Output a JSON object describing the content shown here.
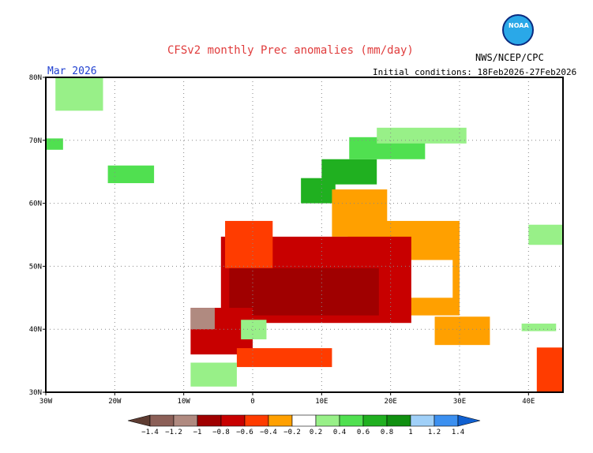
{
  "header": {
    "title": "CFSv2 monthly Prec anomalies (mm/day)",
    "org": "NWS/NCEP/CPC",
    "month": "Mar 2026",
    "initial_conditions": "Initial conditions: 18Feb2026-27Feb2026",
    "logo_text": "NOAA"
  },
  "chart_data": {
    "type": "heatmap",
    "lon_range": [
      -30,
      45
    ],
    "lat_range": [
      30,
      80
    ],
    "x_ticks": [
      "30W",
      "20W",
      "10W",
      "0",
      "10E",
      "20E",
      "30E",
      "40E"
    ],
    "y_ticks": [
      "30N",
      "40N",
      "50N",
      "60N",
      "70N",
      "80N"
    ],
    "grid": "dotted every 10 degrees",
    "legend": {
      "placement": "bottom",
      "labels": [
        "-1.4",
        "-1.2",
        "-1",
        "-0.8",
        "-0.6",
        "-0.4",
        "-0.2",
        "0.2",
        "0.4",
        "0.6",
        "0.8",
        "1",
        "1.2",
        "1.4"
      ],
      "colors": [
        "#5e3c32",
        "#8c6058",
        "#b08a80",
        "#a00000",
        "#c80000",
        "#ff3c00",
        "#ffa000",
        "#ffffff",
        "#98f088",
        "#50e050",
        "#20b020",
        "#109010",
        "#a0d0f8",
        "#3c90f0",
        "#1060d0"
      ]
    },
    "cells": [
      {
        "lon": [
          -28.6,
          -21.7
        ],
        "lat": [
          74.7,
          80
        ],
        "v": 0.3
      },
      {
        "lon": [
          -30,
          -27.5
        ],
        "lat": [
          68.5,
          70.3
        ],
        "v": 0.5
      },
      {
        "lon": [
          -21,
          -14.3
        ],
        "lat": [
          63.2,
          66
        ],
        "v": 0.4
      },
      {
        "lon": [
          7,
          12
        ],
        "lat": [
          60,
          64
        ],
        "v": 0.7
      },
      {
        "lon": [
          10,
          18
        ],
        "lat": [
          63,
          67
        ],
        "v": 0.6
      },
      {
        "lon": [
          14,
          25
        ],
        "lat": [
          67,
          70.5
        ],
        "v": 0.5
      },
      {
        "lon": [
          18,
          31
        ],
        "lat": [
          69.5,
          72
        ],
        "v": 0.3
      },
      {
        "lon": [
          11.5,
          19.5
        ],
        "lat": [
          54.7,
          62.2
        ],
        "v": -0.3
      },
      {
        "lon": [
          13.8,
          30
        ],
        "lat": [
          42.2,
          57.2
        ],
        "v": -0.3
      },
      {
        "lon": [
          21,
          29
        ],
        "lat": [
          45,
          51
        ],
        "v": 0
      },
      {
        "lon": [
          -4.6,
          23
        ],
        "lat": [
          41,
          54.7
        ],
        "v": -0.7
      },
      {
        "lon": [
          -4,
          2.9
        ],
        "lat": [
          49.7,
          57.2
        ],
        "v": -0.6
      },
      {
        "lon": [
          -3.4,
          18.3
        ],
        "lat": [
          42.2,
          49.7
        ],
        "v": -0.9
      },
      {
        "lon": [
          -9,
          0
        ],
        "lat": [
          36,
          43.4
        ],
        "v": -0.7
      },
      {
        "lon": [
          -9,
          -5.5
        ],
        "lat": [
          40,
          43.4
        ],
        "v": -1.2
      },
      {
        "lon": [
          -2.3,
          11.5
        ],
        "lat": [
          34,
          37
        ],
        "v": -0.6
      },
      {
        "lon": [
          26.4,
          34.4
        ],
        "lat": [
          37.5,
          42
        ],
        "v": -0.3
      },
      {
        "lon": [
          41.2,
          45
        ],
        "lat": [
          30,
          37.1
        ],
        "v": -0.6
      },
      {
        "lon": [
          -9,
          -2.3
        ],
        "lat": [
          30.9,
          34.7
        ],
        "v": 0.3
      },
      {
        "lon": [
          -1.7,
          2
        ],
        "lat": [
          38.4,
          41.5
        ],
        "v": 0.3
      },
      {
        "lon": [
          40,
          45
        ],
        "lat": [
          53.4,
          56.6
        ],
        "v": 0.3
      },
      {
        "lon": [
          39,
          44
        ],
        "lat": [
          39.7,
          40.9
        ],
        "v": 0.3
      }
    ]
  }
}
